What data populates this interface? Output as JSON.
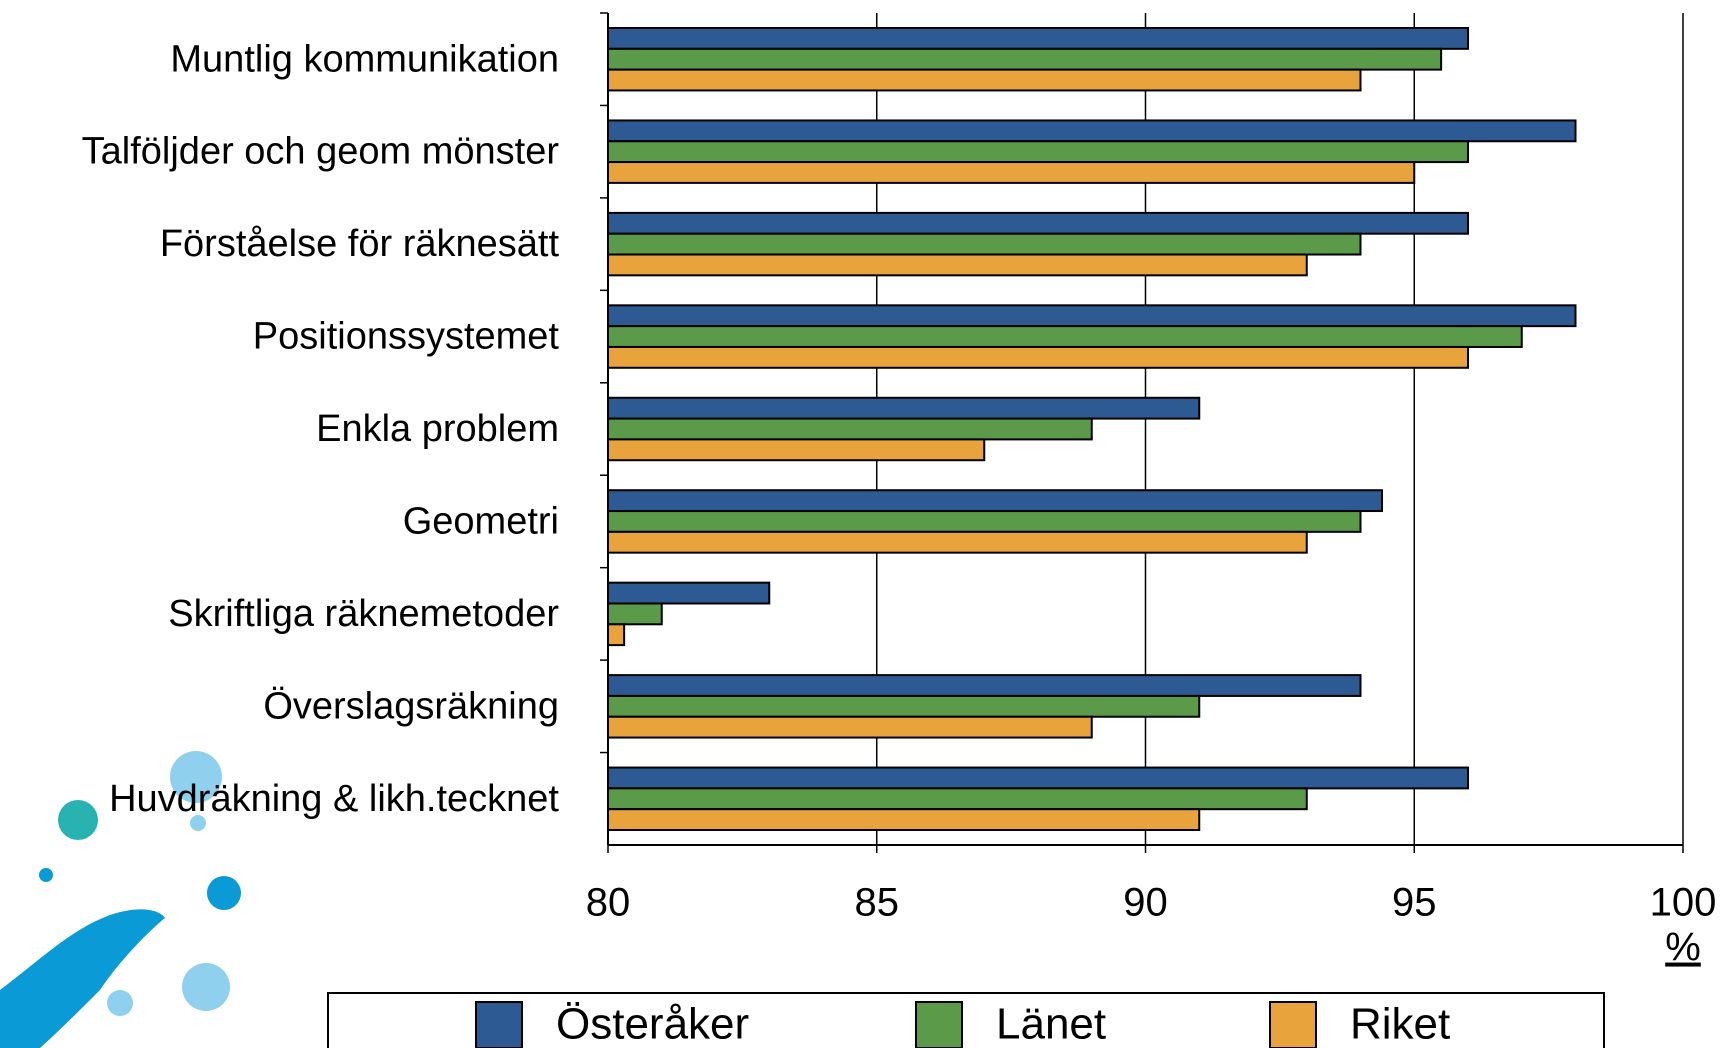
{
  "chart_data": {
    "type": "hbar",
    "categories": [
      "Muntlig kommunikation",
      "Talföljder och geom mönster",
      "Förståelse för räknesätt",
      "Positionssystemet",
      "Enkla problem",
      "Geometri",
      "Skriftliga räknemetoder",
      "Överslagsräkning",
      "Huvdräkning & likh.tecknet"
    ],
    "series": [
      {
        "name": "Österåker",
        "color": "#2e5a94",
        "values": [
          96,
          98,
          96,
          98,
          91,
          94.4,
          83,
          94,
          96
        ]
      },
      {
        "name": "Länet",
        "color": "#5a9a48",
        "values": [
          95.5,
          96,
          94,
          97,
          89,
          94,
          81,
          91,
          93
        ]
      },
      {
        "name": "Riket",
        "color": "#e8a33c",
        "values": [
          94,
          95,
          93,
          96,
          87,
          93,
          80.3,
          89,
          91
        ]
      }
    ],
    "x_label": "%",
    "xlim": [
      80,
      100
    ],
    "xticks": [
      80,
      85,
      90,
      95,
      100
    ],
    "grid": true,
    "legend": "bottom"
  }
}
